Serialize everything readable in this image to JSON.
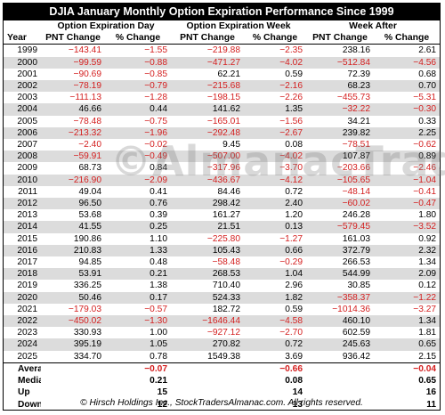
{
  "title": "DJIA January Monthly Option Expiration Performance Since 1999",
  "group_headers": [
    "Option Expiration Day",
    "Option Expiration Week",
    "Week After"
  ],
  "column_headers": [
    "Year",
    "PNT Change",
    "% Change",
    "PNT Change",
    "% Change",
    "PNT Change",
    "% Change"
  ],
  "watermark": "©AlmanacTrader",
  "colors": {
    "negative": "#d42020",
    "stripe": "#dcdcdc",
    "title_bg": "#000000"
  },
  "rows": [
    [
      "1999",
      "−143.41",
      "−1.55",
      "−219.88",
      "−2.35",
      "238.16",
      "2.61"
    ],
    [
      "2000",
      "−99.59",
      "−0.88",
      "−471.27",
      "−4.02",
      "−512.84",
      "−4.56"
    ],
    [
      "2001",
      "−90.69",
      "−0.85",
      "62.21",
      "0.59",
      "72.39",
      "0.68"
    ],
    [
      "2002",
      "−78.19",
      "−0.79",
      "−215.68",
      "−2.16",
      "68.23",
      "0.70"
    ],
    [
      "2003",
      "−111.13",
      "−1.28",
      "−198.15",
      "−2.26",
      "−455.73",
      "−5.31"
    ],
    [
      "2004",
      "46.66",
      "0.44",
      "141.62",
      "1.35",
      "−32.22",
      "−0.30"
    ],
    [
      "2005",
      "−78.48",
      "−0.75",
      "−165.01",
      "−1.56",
      "34.21",
      "0.33"
    ],
    [
      "2006",
      "−213.32",
      "−1.96",
      "−292.48",
      "−2.67",
      "239.82",
      "2.25"
    ],
    [
      "2007",
      "−2.40",
      "−0.02",
      "9.45",
      "0.08",
      "−78.51",
      "−0.62"
    ],
    [
      "2008",
      "−59.91",
      "−0.49",
      "−507.00",
      "−4.02",
      "107.87",
      "0.89"
    ],
    [
      "2009",
      "68.73",
      "0.84",
      "−317.96",
      "−3.70",
      "−203.66",
      "−2.46"
    ],
    [
      "2010",
      "−216.90",
      "−2.09",
      "−436.67",
      "−4.12",
      "−105.65",
      "−1.04"
    ],
    [
      "2011",
      "49.04",
      "0.41",
      "84.46",
      "0.72",
      "−48.14",
      "−0.41"
    ],
    [
      "2012",
      "96.50",
      "0.76",
      "298.42",
      "2.40",
      "−60.02",
      "−0.47"
    ],
    [
      "2013",
      "53.68",
      "0.39",
      "161.27",
      "1.20",
      "246.28",
      "1.80"
    ],
    [
      "2014",
      "41.55",
      "0.25",
      "21.51",
      "0.13",
      "−579.45",
      "−3.52"
    ],
    [
      "2015",
      "190.86",
      "1.10",
      "−225.80",
      "−1.27",
      "161.03",
      "0.92"
    ],
    [
      "2016",
      "210.83",
      "1.33",
      "105.43",
      "0.66",
      "372.79",
      "2.32"
    ],
    [
      "2017",
      "94.85",
      "0.48",
      "−58.48",
      "−0.29",
      "266.53",
      "1.34"
    ],
    [
      "2018",
      "53.91",
      "0.21",
      "268.53",
      "1.04",
      "544.99",
      "2.09"
    ],
    [
      "2019",
      "336.25",
      "1.38",
      "710.40",
      "2.96",
      "30.85",
      "0.12"
    ],
    [
      "2020",
      "50.46",
      "0.17",
      "524.33",
      "1.82",
      "−358.37",
      "−1.22"
    ],
    [
      "2021",
      "−179.03",
      "−0.57",
      "182.72",
      "0.59",
      "−1014.36",
      "−3.27"
    ],
    [
      "2022",
      "−450.02",
      "−1.30",
      "−1646.44",
      "−4.58",
      "460.10",
      "1.34"
    ],
    [
      "2023",
      "330.93",
      "1.00",
      "−927.12",
      "−2.70",
      "602.59",
      "1.81"
    ],
    [
      "2024",
      "395.19",
      "1.05",
      "270.82",
      "0.72",
      "245.63",
      "0.65"
    ],
    [
      "2025",
      "334.70",
      "0.78",
      "1549.38",
      "3.69",
      "936.42",
      "2.15"
    ]
  ],
  "summary": [
    [
      "Average",
      "",
      "−0.07",
      "",
      "−0.66",
      "",
      "−0.04"
    ],
    [
      "Median",
      "",
      "0.21",
      "",
      "0.08",
      "",
      "0.65"
    ],
    [
      "Up",
      "",
      "15",
      "",
      "14",
      "",
      "16"
    ],
    [
      "Down",
      "",
      "12",
      "",
      "13",
      "",
      "11"
    ]
  ],
  "footer": "© Hirsch Holdings Inc., StockTradersAlmanac.com. All rights reserved."
}
